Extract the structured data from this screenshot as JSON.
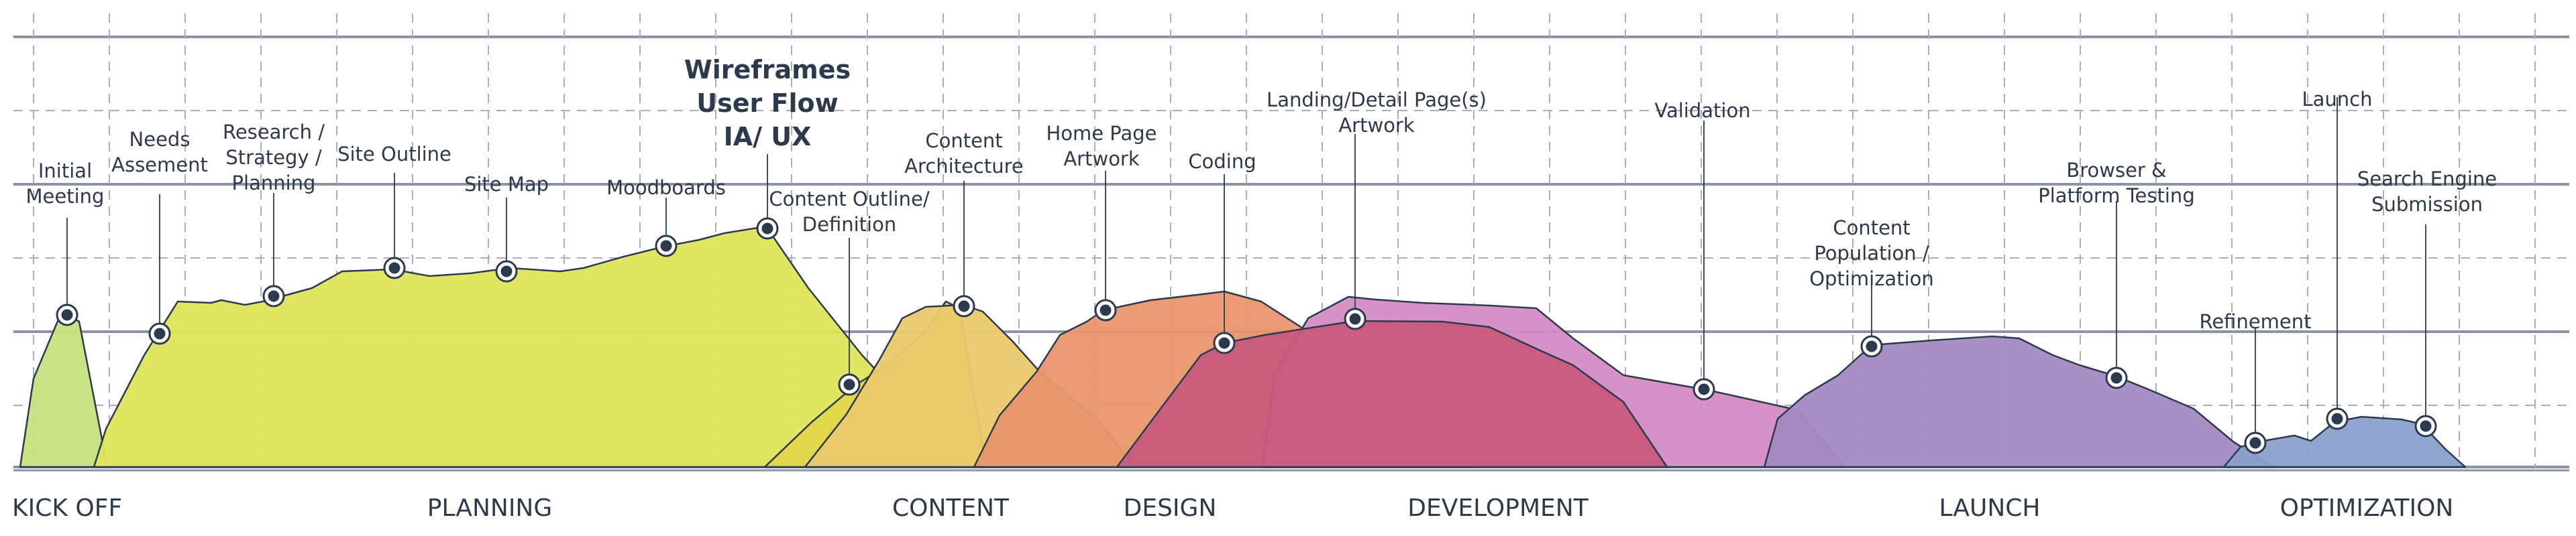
{
  "colors": {
    "ink": "#2c3a4e",
    "grid_dashed": "#a9afb9",
    "grid_solid": "#8a93a3",
    "kickoff": "#c6e07f",
    "planning": "#dfe55a",
    "content_outline": "#e0d84a",
    "content": "#eac96b",
    "design": "#e9956e",
    "coding": "#c85a7c",
    "development": "#d48bc3",
    "launch": "#a389c3",
    "optimization": "#8aa0cc"
  },
  "phases": [
    {
      "id": "kickoff",
      "label": "KICK OFF"
    },
    {
      "id": "planning",
      "label": "PLANNING"
    },
    {
      "id": "content",
      "label": "CONTENT"
    },
    {
      "id": "design",
      "label": "DESIGN"
    },
    {
      "id": "development",
      "label": "DEVELOPMENT"
    },
    {
      "id": "launch",
      "label": "LAUNCH"
    },
    {
      "id": "optimization",
      "label": "OPTIMIZATION"
    }
  ],
  "milestones": [
    {
      "id": "initial-meeting",
      "lines": [
        "Initial",
        "Meeting"
      ]
    },
    {
      "id": "needs-assement",
      "lines": [
        "Needs",
        "Assement"
      ]
    },
    {
      "id": "research-strategy-planning",
      "lines": [
        "Research /",
        "Strategy /",
        "Planning"
      ]
    },
    {
      "id": "site-outline",
      "lines": [
        "Site Outline"
      ]
    },
    {
      "id": "site-map",
      "lines": [
        "Site Map"
      ]
    },
    {
      "id": "moodboards",
      "lines": [
        "Moodboards"
      ]
    },
    {
      "id": "wireframes",
      "lines": [
        "Wireframes",
        "User Flow",
        "IA/ UX"
      ],
      "emphasis": true
    },
    {
      "id": "content-outline-definition",
      "lines": [
        "Content Outline/",
        "Definition"
      ]
    },
    {
      "id": "content-architecture",
      "lines": [
        "Content",
        "Architecture"
      ]
    },
    {
      "id": "home-page-artwork",
      "lines": [
        "Home Page",
        "Artwork"
      ]
    },
    {
      "id": "coding",
      "lines": [
        "Coding"
      ]
    },
    {
      "id": "landing-detail-artwork",
      "lines": [
        "Landing/Detail Page(s)",
        "Artwork"
      ]
    },
    {
      "id": "validation",
      "lines": [
        "Validation"
      ]
    },
    {
      "id": "content-population-optimization",
      "lines": [
        "Content",
        "Population /",
        "Optimization"
      ]
    },
    {
      "id": "browser-platform-testing",
      "lines": [
        "Browser &",
        "Platform Testing"
      ]
    },
    {
      "id": "refinement",
      "lines": [
        "Refinement"
      ]
    },
    {
      "id": "launch",
      "lines": [
        "Launch"
      ]
    },
    {
      "id": "search-engine-submission",
      "lines": [
        "Search Engine",
        "Submission"
      ]
    }
  ]
}
